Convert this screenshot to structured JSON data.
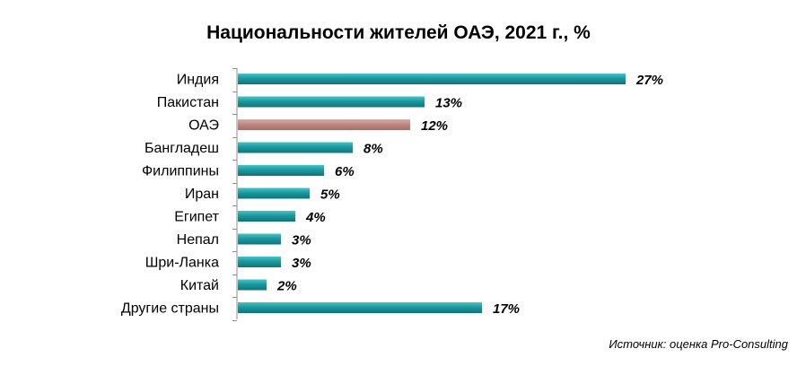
{
  "chart_data": {
    "type": "bar",
    "orientation": "horizontal",
    "title": "Национальности жителей ОАЭ, 2021 г., %",
    "categories": [
      "Индия",
      "Пакистан",
      "ОАЭ",
      "Бангладеш",
      "Филиппины",
      "Иран",
      "Египет",
      "Непал",
      "Шри-Ланка",
      "Китай",
      "Другие страны"
    ],
    "values": [
      27,
      13,
      12,
      8,
      6,
      5,
      4,
      3,
      3,
      2,
      17
    ],
    "value_labels": [
      "27%",
      "13%",
      "12%",
      "8%",
      "6%",
      "5%",
      "4%",
      "3%",
      "3%",
      "2%",
      "17%"
    ],
    "xlim": [
      0,
      27
    ],
    "grid": false,
    "legend": "none",
    "colors": {
      "default": "#1a9a9f",
      "highlight": "#c08a84",
      "highlight_category": "ОАЭ"
    },
    "source": "Источник: оценка Pro-Consulting"
  }
}
